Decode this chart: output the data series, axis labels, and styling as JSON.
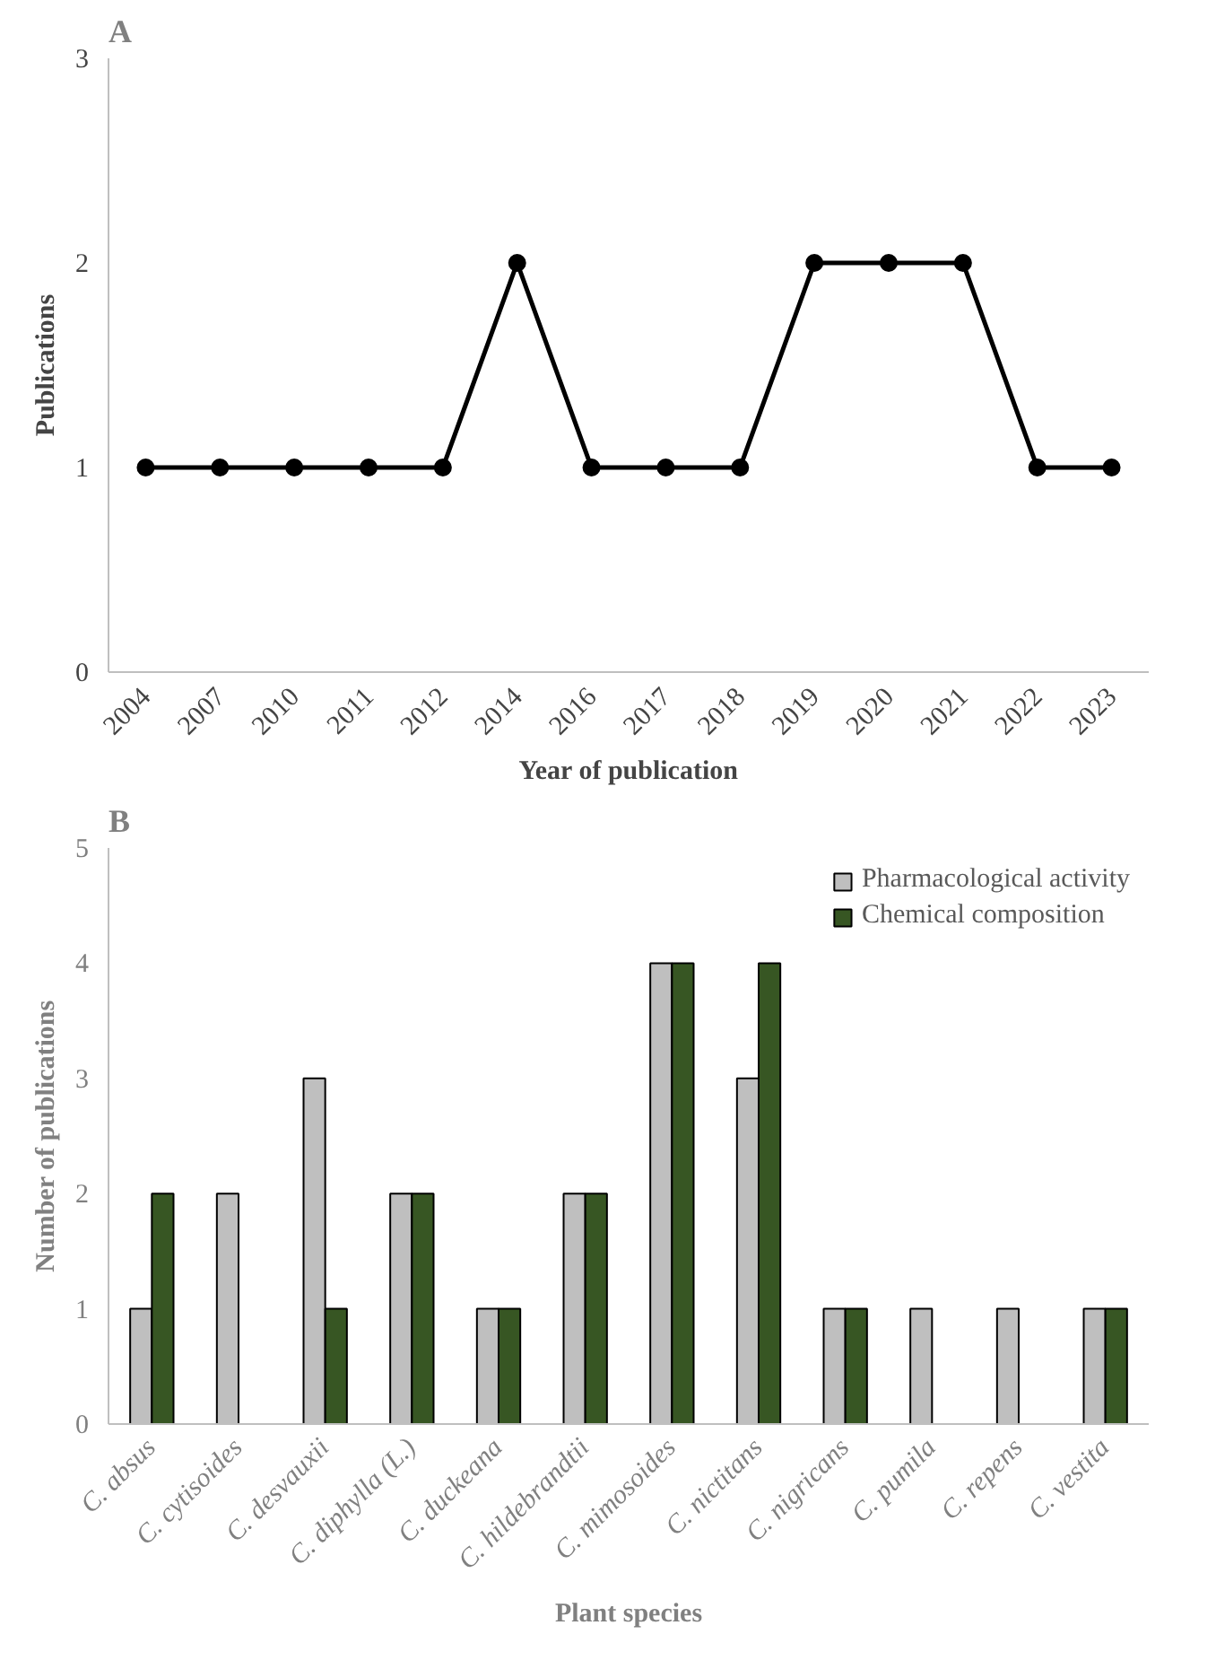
{
  "chart_data": [
    {
      "type": "line",
      "title": "A",
      "xlabel": "Year of publication",
      "ylabel": "Publications",
      "categories": [
        "2004",
        "2007",
        "2010",
        "2011",
        "2012",
        "2014",
        "2016",
        "2017",
        "2018",
        "2019",
        "2020",
        "2021",
        "2022",
        "2023"
      ],
      "series": [
        {
          "color": "#000000",
          "values": [
            1,
            1,
            1,
            1,
            1,
            2,
            1,
            1,
            1,
            2,
            2,
            2,
            1,
            1
          ]
        }
      ],
      "ylim": [
        0,
        3
      ],
      "yticks": [
        0,
        1,
        2,
        3
      ],
      "grid": false,
      "marker": "circle",
      "line_style": "solid"
    },
    {
      "type": "bar",
      "title": "B",
      "xlabel": "Plant species",
      "ylabel": "Number of publications",
      "categories": [
        "C. absus",
        "C. cytisoides",
        "C. desvauxii",
        "C. diphylla (L.)",
        "C. duckeana",
        "C. hildebrandtii",
        "C. mimosoides",
        "C. nictitans",
        "C. nigricans",
        "C. pumila",
        "C. repens",
        "C. vestita"
      ],
      "series": [
        {
          "name": "Pharmacological activity",
          "color": "#bfbfbf",
          "values": [
            1,
            2,
            3,
            2,
            1,
            2,
            4,
            3,
            1,
            1,
            1,
            1
          ]
        },
        {
          "name": "Chemical composition",
          "color": "#375623",
          "values": [
            2,
            null,
            1,
            2,
            1,
            2,
            4,
            4,
            1,
            null,
            null,
            1
          ]
        }
      ],
      "ylim": [
        0,
        5
      ],
      "yticks": [
        0,
        1,
        2,
        3,
        4,
        5
      ],
      "grid": false,
      "legend": "top right"
    }
  ]
}
